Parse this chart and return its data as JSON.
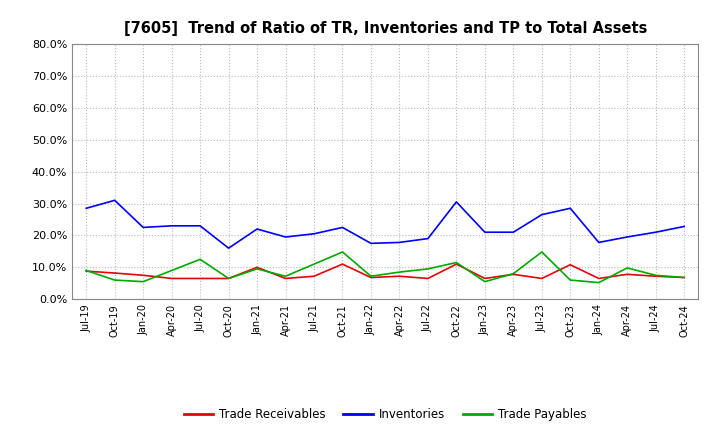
{
  "title": "[7605]  Trend of Ratio of TR, Inventories and TP to Total Assets",
  "x_labels": [
    "Jul-19",
    "Oct-19",
    "Jan-20",
    "Apr-20",
    "Jul-20",
    "Oct-20",
    "Jan-21",
    "Apr-21",
    "Jul-21",
    "Oct-21",
    "Jan-22",
    "Apr-22",
    "Jul-22",
    "Oct-22",
    "Jan-23",
    "Apr-23",
    "Jul-23",
    "Oct-23",
    "Jan-24",
    "Apr-24",
    "Jul-24",
    "Oct-24"
  ],
  "trade_receivables": [
    0.088,
    0.082,
    0.075,
    0.065,
    0.065,
    0.065,
    0.1,
    0.065,
    0.072,
    0.11,
    0.068,
    0.072,
    0.065,
    0.11,
    0.065,
    0.078,
    0.065,
    0.108,
    0.065,
    0.078,
    0.072,
    0.068
  ],
  "inventories": [
    0.285,
    0.31,
    0.225,
    0.23,
    0.23,
    0.16,
    0.22,
    0.195,
    0.205,
    0.225,
    0.175,
    0.178,
    0.19,
    0.305,
    0.21,
    0.21,
    0.265,
    0.285,
    0.178,
    0.195,
    0.21,
    0.228
  ],
  "trade_payables": [
    0.09,
    0.06,
    0.055,
    0.09,
    0.125,
    0.065,
    0.095,
    0.072,
    0.11,
    0.148,
    0.072,
    0.085,
    0.095,
    0.115,
    0.055,
    0.08,
    0.148,
    0.06,
    0.052,
    0.098,
    0.075,
    0.068
  ],
  "tr_color": "#e8000d",
  "inv_color": "#0000ff",
  "tp_color": "#00aa00",
  "ylim": [
    0.0,
    0.8
  ],
  "yticks": [
    0.0,
    0.1,
    0.2,
    0.3,
    0.4,
    0.5,
    0.6,
    0.7,
    0.8
  ],
  "bg_color": "#ffffff",
  "plot_bg_color": "#ffffff",
  "grid_color": "#bbbbbb",
  "legend_labels": [
    "Trade Receivables",
    "Inventories",
    "Trade Payables"
  ]
}
